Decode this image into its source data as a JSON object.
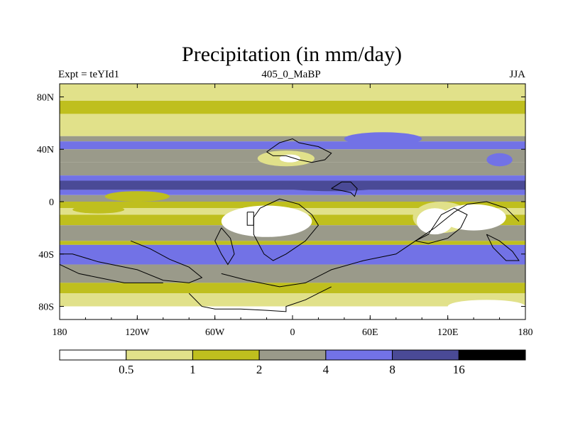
{
  "chart_data": {
    "type": "heatmap",
    "title": "Precipitation (in mm/day)",
    "left_label": "Expt = teYId1",
    "center_label": "405_0_MaBP",
    "right_label": "JJA",
    "x": {
      "range": [
        -180,
        180
      ],
      "ticks": [
        {
          "value": -180,
          "label": "180"
        },
        {
          "value": -120,
          "label": "120W"
        },
        {
          "value": -60,
          "label": "60W"
        },
        {
          "value": 0,
          "label": "0"
        },
        {
          "value": 60,
          "label": "60E"
        },
        {
          "value": 120,
          "label": "120E"
        },
        {
          "value": 180,
          "label": "180"
        }
      ]
    },
    "y": {
      "range": [
        -90,
        90
      ],
      "ticks": [
        {
          "value": 80,
          "label": "80N"
        },
        {
          "value": 40,
          "label": "40N"
        },
        {
          "value": 0,
          "label": "0"
        },
        {
          "value": -40,
          "label": "40S"
        },
        {
          "value": -80,
          "label": "80S"
        }
      ]
    },
    "colorbar": {
      "levels": [
        "0.5",
        "1",
        "2",
        "4",
        "8",
        "16"
      ],
      "colors": [
        "#ffffff",
        "#e1e18a",
        "#bfbf1e",
        "#9a9a8a",
        "#7272e6",
        "#4a4a96",
        "#000000"
      ]
    },
    "bands": [
      {
        "lat": [
          77,
          90
        ],
        "bin": 1
      },
      {
        "lat": [
          67,
          77
        ],
        "bin": 2
      },
      {
        "lat": [
          50,
          67
        ],
        "bin": 1
      },
      {
        "lat": [
          46,
          50
        ],
        "bin": 3
      },
      {
        "lat": [
          40,
          46
        ],
        "bin": 4
      },
      {
        "lat": [
          30,
          40
        ],
        "bin": 3
      },
      {
        "lat": [
          20,
          30
        ],
        "bin": 3
      },
      {
        "lat": [
          16,
          20
        ],
        "bin": 4
      },
      {
        "lat": [
          9,
          16
        ],
        "bin": 5
      },
      {
        "lat": [
          5,
          9
        ],
        "bin": 4
      },
      {
        "lat": [
          0,
          5
        ],
        "bin": 3
      },
      {
        "lat": [
          -5,
          0
        ],
        "bin": 2
      },
      {
        "lat": [
          -10,
          -5
        ],
        "bin": 1
      },
      {
        "lat": [
          -18,
          -10
        ],
        "bin": 2
      },
      {
        "lat": [
          -30,
          -18
        ],
        "bin": 3
      },
      {
        "lat": [
          -33,
          -30
        ],
        "bin": 2
      },
      {
        "lat": [
          -48,
          -33
        ],
        "bin": 4
      },
      {
        "lat": [
          -62,
          -48
        ],
        "bin": 3
      },
      {
        "lat": [
          -70,
          -62
        ],
        "bin": 2
      },
      {
        "lat": [
          -80,
          -70
        ],
        "bin": 1
      },
      {
        "lat": [
          -90,
          -80
        ],
        "bin": 0
      }
    ],
    "patches": [
      {
        "center": [
          -20,
          -15
        ],
        "radii": [
          35,
          12
        ],
        "bin": 0
      },
      {
        "center": [
          115,
          -12
        ],
        "radii": [
          22,
          12
        ],
        "bin": 1
      },
      {
        "center": [
          140,
          -12
        ],
        "radii": [
          25,
          10
        ],
        "bin": 0
      },
      {
        "center": [
          110,
          -15
        ],
        "radii": [
          14,
          10
        ],
        "bin": 0
      },
      {
        "center": [
          -5,
          33
        ],
        "radii": [
          22,
          6
        ],
        "bin": 1
      },
      {
        "center": [
          -2,
          33
        ],
        "radii": [
          8,
          3
        ],
        "bin": 0
      },
      {
        "center": [
          70,
          48
        ],
        "radii": [
          30,
          5
        ],
        "bin": 4
      },
      {
        "center": [
          160,
          32
        ],
        "radii": [
          10,
          5
        ],
        "bin": 4
      },
      {
        "center": [
          -120,
          4
        ],
        "radii": [
          25,
          4
        ],
        "bin": 2
      },
      {
        "center": [
          30,
          12
        ],
        "radii": [
          40,
          4
        ],
        "bin": 5
      },
      {
        "center": [
          -150,
          -6
        ],
        "radii": [
          20,
          3
        ],
        "bin": 2
      },
      {
        "center": [
          150,
          -80
        ],
        "radii": [
          30,
          5
        ],
        "bin": 0
      }
    ],
    "coastlines": [
      [
        [
          -20,
          38
        ],
        [
          -10,
          45
        ],
        [
          0,
          48
        ],
        [
          5,
          45
        ],
        [
          15,
          43
        ],
        [
          20,
          42
        ],
        [
          30,
          37
        ],
        [
          25,
          32
        ],
        [
          15,
          30
        ],
        [
          5,
          32
        ],
        [
          -5,
          35
        ],
        [
          -15,
          35
        ],
        [
          -20,
          38
        ]
      ],
      [
        [
          30,
          10
        ],
        [
          40,
          8
        ],
        [
          45,
          7
        ],
        [
          48,
          4
        ],
        [
          50,
          10
        ],
        [
          45,
          15
        ],
        [
          38,
          15
        ],
        [
          30,
          10
        ]
      ],
      [
        [
          -25,
          -5
        ],
        [
          -30,
          -12
        ],
        [
          -30,
          -25
        ],
        [
          -22,
          -40
        ],
        [
          -15,
          -45
        ],
        [
          -5,
          -40
        ],
        [
          10,
          -30
        ],
        [
          20,
          -18
        ],
        [
          15,
          -10
        ],
        [
          5,
          -2
        ],
        [
          -10,
          2
        ],
        [
          -25,
          -5
        ]
      ],
      [
        [
          -35,
          -8
        ],
        [
          -30,
          -8
        ],
        [
          -30,
          -18
        ],
        [
          -35,
          -18
        ],
        [
          -35,
          -8
        ]
      ],
      [
        [
          -55,
          -20
        ],
        [
          -48,
          -28
        ],
        [
          -45,
          -40
        ],
        [
          -50,
          -48
        ],
        [
          -55,
          -40
        ],
        [
          -60,
          -30
        ],
        [
          -55,
          -20
        ]
      ],
      [
        [
          -125,
          -30
        ],
        [
          -110,
          -36
        ],
        [
          -95,
          -44
        ],
        [
          -80,
          -50
        ],
        [
          -70,
          -58
        ],
        [
          -80,
          -62
        ],
        [
          -100,
          -60
        ],
        [
          -120,
          -52
        ],
        [
          -150,
          -46
        ],
        [
          -170,
          -40
        ],
        [
          -180,
          -40
        ]
      ],
      [
        [
          -55,
          -55
        ],
        [
          -35,
          -60
        ],
        [
          -10,
          -65
        ],
        [
          10,
          -62
        ],
        [
          30,
          -52
        ],
        [
          55,
          -45
        ],
        [
          80,
          -40
        ],
        [
          95,
          -30
        ],
        [
          110,
          -20
        ],
        [
          125,
          -8
        ],
        [
          135,
          -2
        ],
        [
          150,
          0
        ],
        [
          165,
          -5
        ],
        [
          175,
          -15
        ]
      ],
      [
        [
          -80,
          -70
        ],
        [
          -70,
          -80
        ],
        [
          -60,
          -82
        ],
        [
          -40,
          -82
        ],
        [
          -20,
          -83
        ],
        [
          -5,
          -84
        ],
        [
          -5,
          -80
        ],
        [
          10,
          -75
        ],
        [
          20,
          -70
        ],
        [
          30,
          -65
        ]
      ],
      [
        [
          95,
          -30
        ],
        [
          105,
          -25
        ],
        [
          115,
          -10
        ],
        [
          125,
          -5
        ],
        [
          135,
          -10
        ],
        [
          130,
          -20
        ],
        [
          120,
          -28
        ],
        [
          105,
          -32
        ],
        [
          95,
          -30
        ]
      ],
      [
        [
          150,
          -25
        ],
        [
          160,
          -30
        ],
        [
          170,
          -38
        ],
        [
          175,
          -45
        ],
        [
          165,
          -45
        ],
        [
          155,
          -35
        ],
        [
          150,
          -25
        ]
      ],
      [
        [
          -180,
          -48
        ],
        [
          -165,
          -55
        ],
        [
          -150,
          -58
        ],
        [
          -130,
          -62
        ],
        [
          -115,
          -62
        ],
        [
          -100,
          -62
        ]
      ]
    ]
  }
}
